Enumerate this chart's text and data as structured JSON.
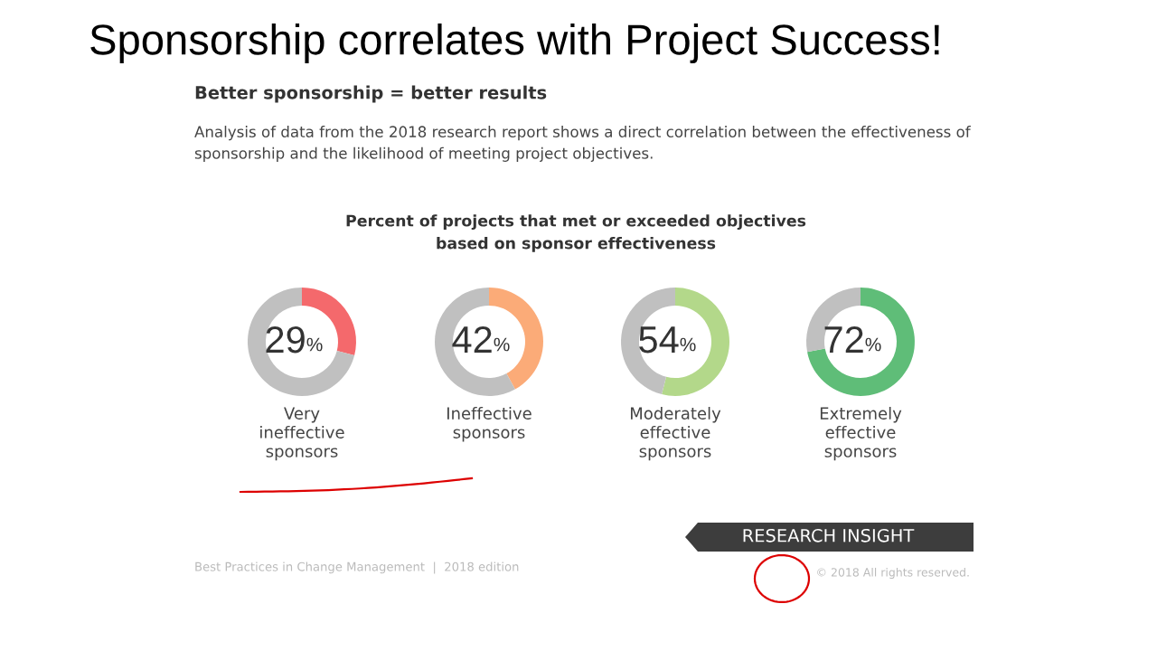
{
  "chart_data": [
    {
      "type": "other",
      "title": "Sponsorship correlates with Project Success!",
      "subtitle": "Better sponsorship = better results",
      "annotations": [
        "Analysis of data from the 2018 research report shows a direct correlation between the effectiveness of\nsponsorship and the likelihood of meeting project objectives.",
        "Percent of projects that met or exceeded objectives\nbased on sponsor effectiveness",
        "Best Practices in Change Management  |  2018 edition",
        "RESEARCH INSIGHT",
        "© 2018 All rights reserved."
      ]
    },
    {
      "type": "donut",
      "categories": [
        null,
        null
      ],
      "values": [
        29,
        71
      ],
      "colors": [
        "#f4696c",
        "#c0c0c0"
      ],
      "xlabel": "Very\nineffective\nsponsors",
      "annotations": [
        "29%"
      ]
    },
    {
      "type": "donut",
      "categories": [
        null,
        null
      ],
      "values": [
        42,
        58
      ],
      "colors": [
        "#fbab78",
        "#c0c0c0"
      ],
      "xlabel": "Ineffective\nsponsors",
      "annotations": [
        "42%"
      ]
    },
    {
      "type": "donut",
      "categories": [
        null,
        null
      ],
      "values": [
        54,
        46
      ],
      "colors": [
        "#b3d88a",
        "#c0c0c0"
      ],
      "xlabel": "Moderately\neffective\nsponsors",
      "annotations": [
        "54%"
      ]
    },
    {
      "type": "donut",
      "categories": [
        null,
        null
      ],
      "values": [
        72,
        28
      ],
      "colors": [
        "#5fbd78",
        "#c0c0c0"
      ],
      "xlabel": "Extremely\neffective\nsponsors",
      "annotations": [
        "72%"
      ]
    }
  ]
}
